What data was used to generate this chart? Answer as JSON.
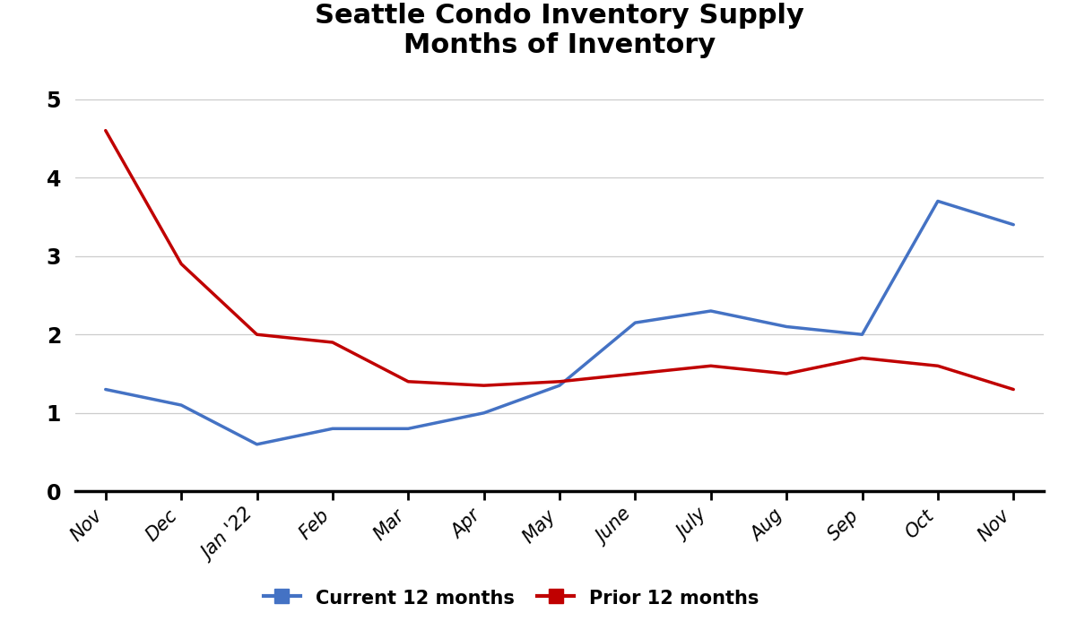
{
  "title": "Seattle Condo Inventory Supply\nMonths of Inventory",
  "x_labels": [
    "Nov",
    "Dec",
    "Jan '22",
    "Feb",
    "Mar",
    "Apr",
    "May",
    "June",
    "July",
    "Aug",
    "Sep",
    "Oct",
    "Nov"
  ],
  "current_12": [
    1.3,
    1.1,
    0.6,
    0.8,
    0.8,
    1.0,
    1.35,
    2.15,
    2.3,
    2.1,
    2.0,
    3.7,
    3.4
  ],
  "prior_12": [
    4.6,
    2.9,
    2.0,
    1.9,
    1.4,
    1.35,
    1.4,
    1.5,
    1.6,
    1.5,
    1.7,
    1.6,
    1.3
  ],
  "current_color": "#4472C4",
  "prior_color": "#C00000",
  "ylim": [
    0,
    5.3
  ],
  "yticks": [
    0,
    1,
    2,
    3,
    4,
    5
  ],
  "legend_labels": [
    "Current 12 months",
    "Prior 12 months"
  ],
  "background_color": "#FFFFFF",
  "line_width": 2.5,
  "title_fontsize": 22,
  "tick_fontsize": 15,
  "legend_fontsize": 15
}
